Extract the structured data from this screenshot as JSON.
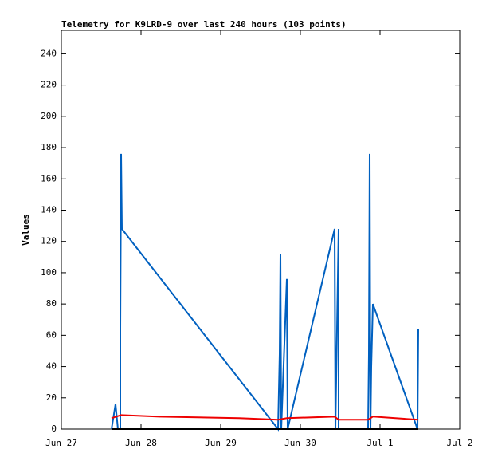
{
  "chart_data": {
    "type": "line",
    "title": "Telemetry for K9LRD-9 over last 240 hours (103 points)",
    "y_label": "Values",
    "xlim": [
      0,
      5
    ],
    "ylim": [
      0,
      255
    ],
    "xticks": [
      {
        "value": 0,
        "label": "Jun 27"
      },
      {
        "value": 1,
        "label": "Jun 28"
      },
      {
        "value": 2,
        "label": "Jun 29"
      },
      {
        "value": 3,
        "label": "Jun 30"
      },
      {
        "value": 4,
        "label": "Jul 1"
      },
      {
        "value": 5,
        "label": "Jul 2"
      }
    ],
    "yticks": [
      0,
      20,
      40,
      60,
      80,
      100,
      120,
      140,
      160,
      180,
      200,
      220,
      240
    ],
    "series": [
      {
        "color": "#0060c0",
        "x": [
          0.63,
          0.68,
          0.71,
          0.74,
          0.74,
          0.75,
          0.755,
          0.76,
          2.72,
          2.73,
          2.74,
          2.75,
          2.76,
          2.83,
          2.84,
          3.43,
          3.44,
          3.48,
          3.48,
          3.85,
          3.86,
          3.87,
          3.88,
          3.89,
          3.91,
          4.47,
          4.48
        ],
        "values": [
          0,
          16,
          0,
          0,
          64,
          176,
          152,
          128,
          0,
          24,
          48,
          112,
          0,
          96,
          0,
          128,
          0,
          128,
          0,
          0,
          48,
          176,
          0,
          40,
          80,
          0,
          64
        ]
      },
      {
        "color": "#ee0000",
        "x": [
          0.63,
          0.75,
          1.23,
          2.23,
          2.72,
          2.83,
          3.43,
          3.48,
          3.85,
          3.91,
          4.48
        ],
        "values": [
          7,
          9,
          8,
          7,
          6,
          7,
          8,
          6,
          6,
          8,
          6
        ]
      },
      {
        "color": "#000000",
        "x": [
          0.63,
          4.48
        ],
        "values": [
          0,
          0
        ]
      }
    ]
  }
}
